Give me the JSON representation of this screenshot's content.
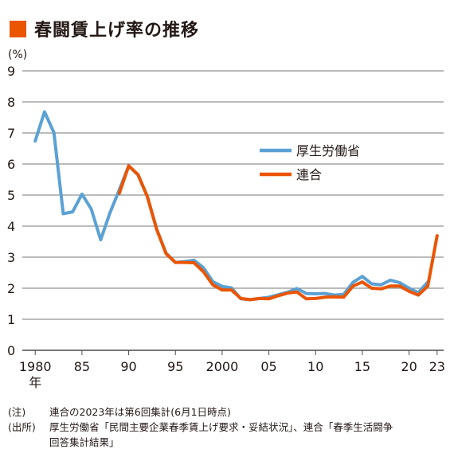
{
  "colors": {
    "title_mark": "#ea5504",
    "mhlw": "#5ba1d3",
    "rengo": "#ea5504",
    "grid": "#4a4a4a",
    "text": "#231815"
  },
  "header": {
    "title": "春闘賃上げ率の推移",
    "unit": "(%)"
  },
  "chart_data": {
    "type": "line",
    "title": "春闘賃上げ率の推移",
    "ylabel": "(%)",
    "ylim": [
      0,
      9
    ],
    "yticks": [
      "0",
      "1",
      "2",
      "3",
      "4",
      "5",
      "6",
      "7",
      "8",
      "9"
    ],
    "xlim": [
      1979.3,
      2023.7
    ],
    "xticks": [
      {
        "x": 1980,
        "label": "1980"
      },
      {
        "x": 1985,
        "label": "85"
      },
      {
        "x": 1990,
        "label": "90"
      },
      {
        "x": 1995,
        "label": "95"
      },
      {
        "x": 2000,
        "label": "2000"
      },
      {
        "x": 2005,
        "label": "05"
      },
      {
        "x": 2010,
        "label": "10"
      },
      {
        "x": 2015,
        "label": "15"
      },
      {
        "x": 2020,
        "label": "20"
      },
      {
        "x": 2023,
        "label": "23"
      }
    ],
    "xaxis_suffix": "年",
    "grid": true,
    "legend": "right",
    "series": [
      {
        "name": "厚生労働省",
        "color": "#5ba1d3",
        "x": [
          1980,
          1981,
          1982,
          1983,
          1984,
          1985,
          1986,
          1987,
          1988,
          1989,
          1990,
          1991,
          1992,
          1993,
          1994,
          1995,
          1996,
          1997,
          1998,
          1999,
          2000,
          2001,
          2002,
          2003,
          2004,
          2005,
          2006,
          2007,
          2008,
          2009,
          2010,
          2011,
          2012,
          2013,
          2014,
          2015,
          2016,
          2017,
          2018,
          2019,
          2020,
          2021,
          2022
        ],
        "values": [
          6.74,
          7.68,
          7.01,
          4.4,
          4.46,
          5.03,
          4.55,
          3.56,
          4.43,
          5.17,
          5.94,
          5.65,
          4.95,
          3.89,
          3.13,
          2.83,
          2.86,
          2.9,
          2.66,
          2.21,
          2.06,
          2.01,
          1.66,
          1.63,
          1.67,
          1.71,
          1.79,
          1.87,
          1.99,
          1.83,
          1.82,
          1.83,
          1.78,
          1.8,
          2.19,
          2.38,
          2.14,
          2.11,
          2.26,
          2.18,
          2.0,
          1.86,
          2.2
        ]
      },
      {
        "name": "連合",
        "color": "#ea5504",
        "x": [
          1989,
          1990,
          1991,
          1992,
          1993,
          1994,
          1995,
          1996,
          1997,
          1998,
          1999,
          2000,
          2001,
          2002,
          2003,
          2004,
          2005,
          2006,
          2007,
          2008,
          2009,
          2010,
          2011,
          2012,
          2013,
          2014,
          2015,
          2016,
          2017,
          2018,
          2019,
          2020,
          2021,
          2022,
          2023
        ],
        "values": [
          5.06,
          5.94,
          5.66,
          4.95,
          3.89,
          3.11,
          2.83,
          2.83,
          2.82,
          2.53,
          2.11,
          1.94,
          1.94,
          1.67,
          1.63,
          1.67,
          1.66,
          1.76,
          1.84,
          1.88,
          1.66,
          1.67,
          1.71,
          1.72,
          1.71,
          2.07,
          2.2,
          2.0,
          1.98,
          2.07,
          2.07,
          1.9,
          1.78,
          2.07,
          3.69
        ]
      }
    ]
  },
  "notes": {
    "note_label": "(注)",
    "note_text": "連合の2023年は第6回集計(6月1日時点)",
    "source_label": "(出所)",
    "source_text_1": "厚生労働省「民間主要企業春季賃上げ要求・妥結状況」、連合「春季生活闘争",
    "source_text_2": "回答集計結果」"
  }
}
